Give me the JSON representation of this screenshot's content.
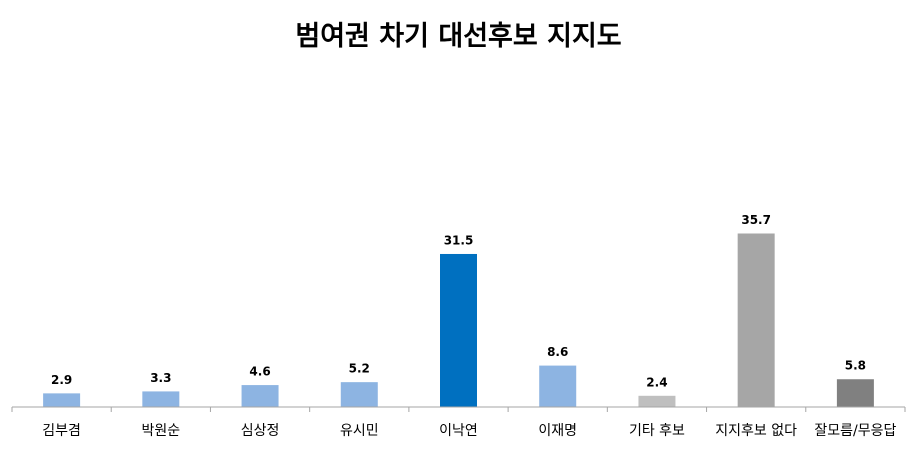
{
  "chart_data": {
    "type": "bar",
    "title": "범여권 차기 대선후보 지지도",
    "categories": [
      "김부겸",
      "박원순",
      "심상정",
      "유시민",
      "이낙연",
      "이재명",
      "기타 후보",
      "지지후보 없다",
      "잘모름/무응답"
    ],
    "values": [
      2.9,
      3.3,
      4.6,
      5.2,
      31.5,
      8.6,
      2.4,
      35.7,
      5.8
    ],
    "value_labels": [
      "2.9",
      "3.3",
      "4.6",
      "5.2",
      "31.5",
      "8.6",
      "2.4",
      "35.7",
      "5.8"
    ],
    "colors": [
      "#8DB4E2",
      "#8DB4E2",
      "#8DB4E2",
      "#8DB4E2",
      "#0070C0",
      "#8DB4E2",
      "#BFBFBF",
      "#A6A6A6",
      "#808080"
    ],
    "xlabel": "",
    "ylabel": "",
    "ylim": [
      0,
      40
    ],
    "grid": false,
    "legend": "none"
  }
}
